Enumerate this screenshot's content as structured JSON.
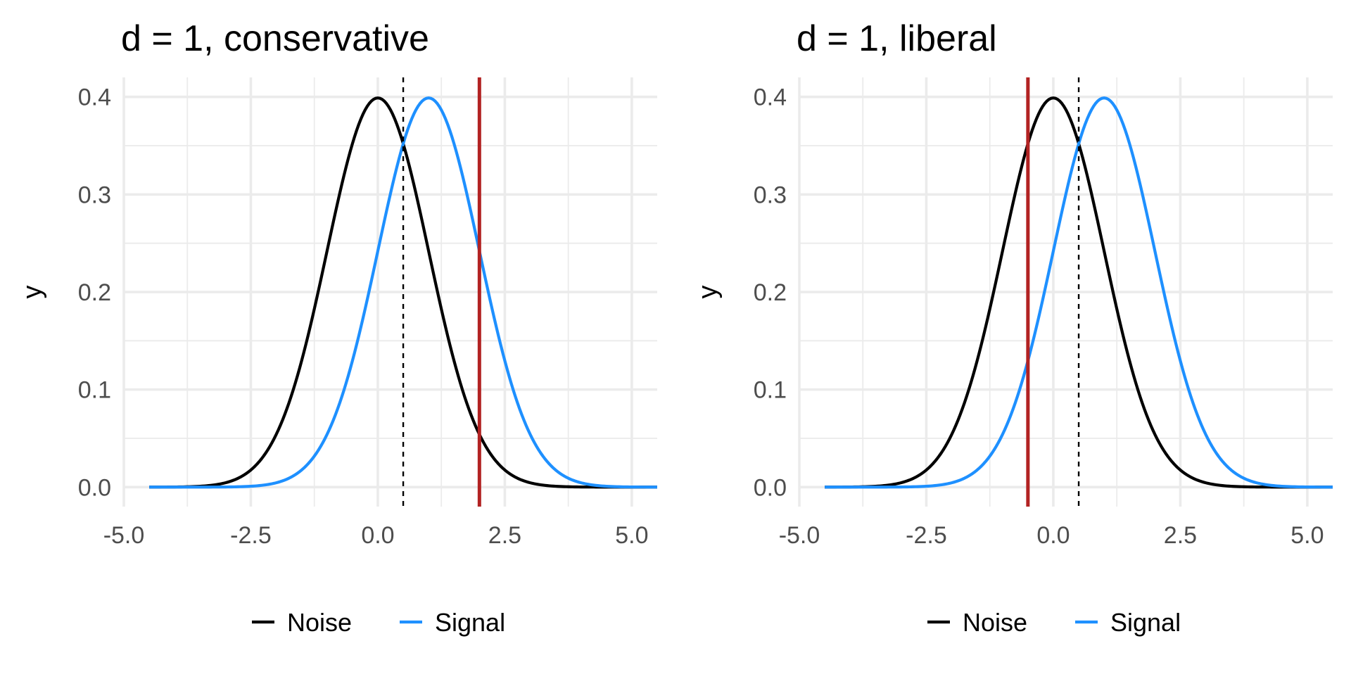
{
  "chart_data": [
    {
      "type": "line",
      "title": "d = 1, conservative",
      "xlabel": "",
      "ylabel": "y",
      "xlim": [
        -5.0,
        5.5
      ],
      "ylim": [
        0.0,
        0.4
      ],
      "x_ticks": [
        "-5.0",
        "-2.5",
        "0.0",
        "2.5",
        "5.0"
      ],
      "y_ticks": [
        "0.0",
        "0.1",
        "0.2",
        "0.3",
        "0.4"
      ],
      "grid": true,
      "legend_position": "bottom",
      "series": [
        {
          "name": "Noise",
          "type": "normal-density",
          "mean": 0,
          "sd": 1,
          "x_range": [
            -4.5,
            5.5
          ],
          "color": "#000000"
        },
        {
          "name": "Signal",
          "type": "normal-density",
          "mean": 1,
          "sd": 1,
          "x_range": [
            -4.5,
            5.5
          ],
          "color": "#1e90ff"
        }
      ],
      "vlines": [
        {
          "x": 0.5,
          "style": "dashed",
          "color": "#000000"
        },
        {
          "x": 2.0,
          "style": "solid",
          "color": "#b22222"
        }
      ]
    },
    {
      "type": "line",
      "title": "d = 1, liberal",
      "xlabel": "",
      "ylabel": "y",
      "xlim": [
        -5.0,
        5.5
      ],
      "ylim": [
        0.0,
        0.4
      ],
      "x_ticks": [
        "-5.0",
        "-2.5",
        "0.0",
        "2.5",
        "5.0"
      ],
      "y_ticks": [
        "0.0",
        "0.1",
        "0.2",
        "0.3",
        "0.4"
      ],
      "grid": true,
      "legend_position": "bottom",
      "series": [
        {
          "name": "Noise",
          "type": "normal-density",
          "mean": 0,
          "sd": 1,
          "x_range": [
            -4.5,
            5.5
          ],
          "color": "#000000"
        },
        {
          "name": "Signal",
          "type": "normal-density",
          "mean": 1,
          "sd": 1,
          "x_range": [
            -4.5,
            5.5
          ],
          "color": "#1e90ff"
        }
      ],
      "vlines": [
        {
          "x": 0.5,
          "style": "dashed",
          "color": "#000000"
        },
        {
          "x": -0.5,
          "style": "solid",
          "color": "#b22222"
        }
      ]
    }
  ]
}
